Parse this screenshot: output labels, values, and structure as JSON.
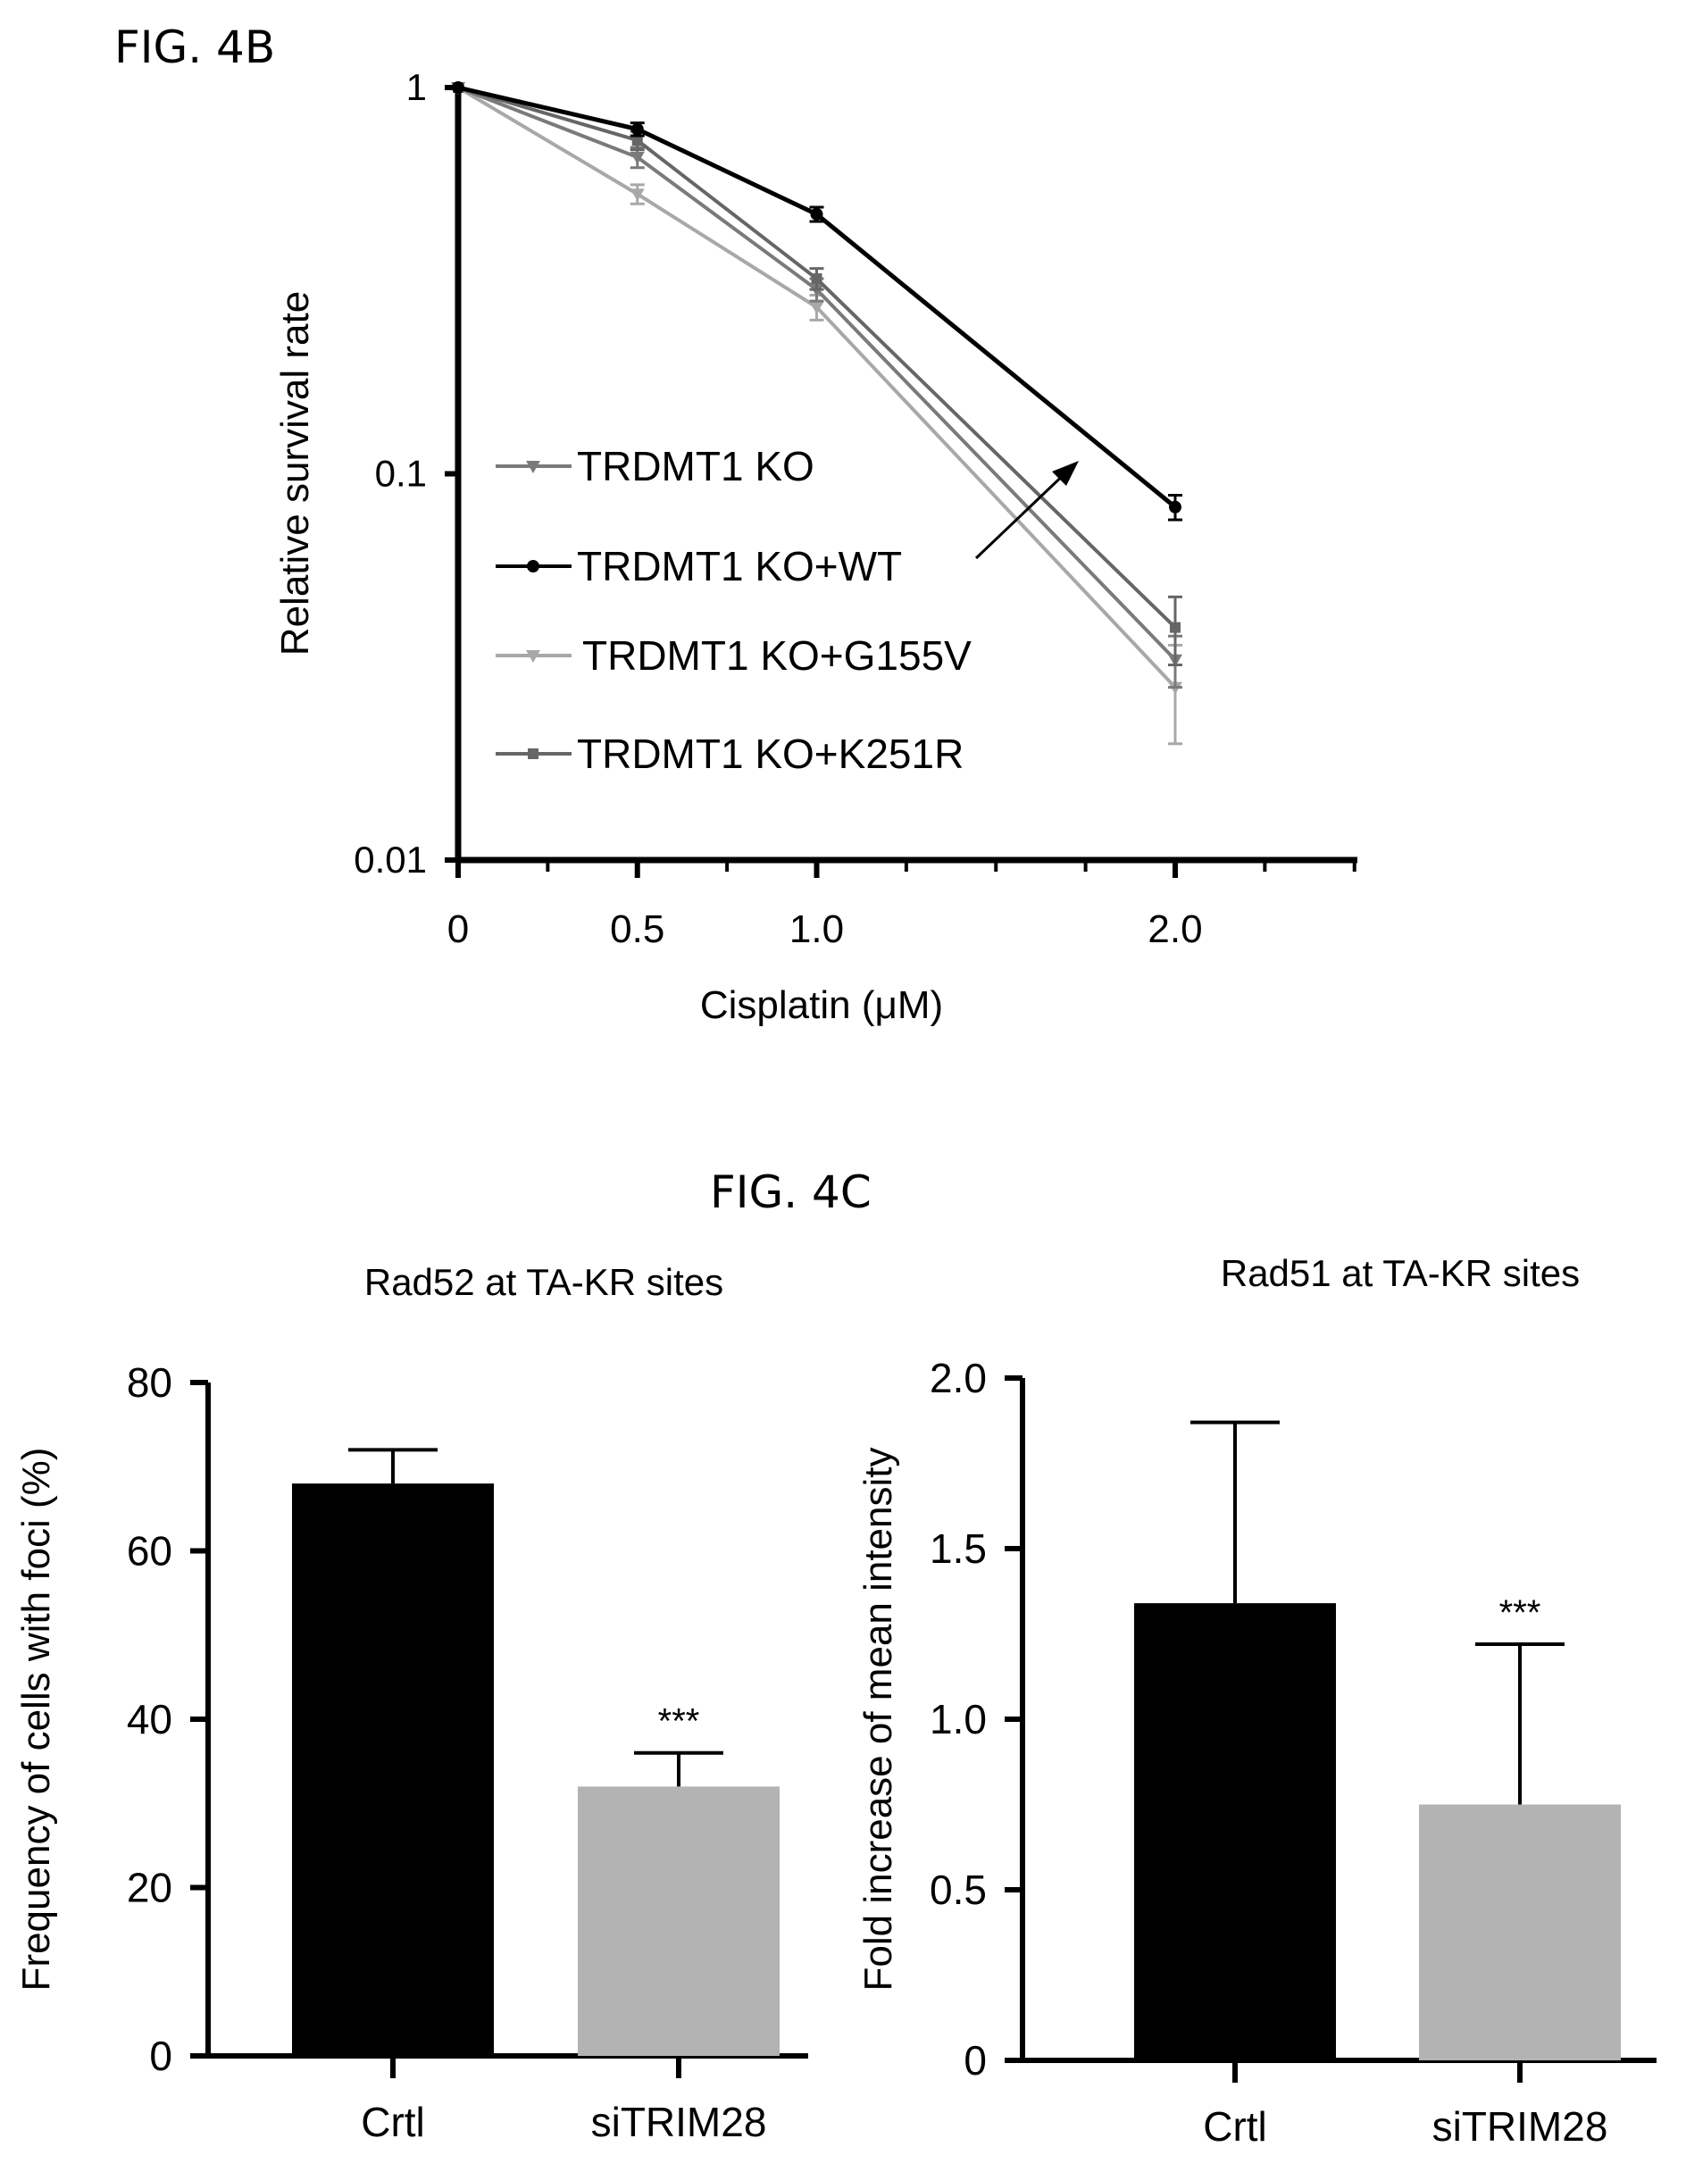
{
  "figure_labels": {
    "fig_4b": "FIG. 4B",
    "fig_4c": "FIG. 4C"
  },
  "colors": {
    "black": "#000000",
    "dark_gray": "#111111",
    "gray": "#7a7a7a",
    "light_gray": "#a8a8a8",
    "bar_gray": "#b3b3b3"
  },
  "chart_data": [
    {
      "id": "fig4b",
      "type": "line",
      "xlabel": "Cisplatin (μM)",
      "ylabel": "Relative survival rate",
      "yscale": "log",
      "ylim": [
        0.01,
        1
      ],
      "xlim": [
        0,
        2.5
      ],
      "x_ticks": [
        0,
        0.5,
        1.0,
        2.0
      ],
      "x_tick_labels": [
        "0",
        "0.5",
        "1.0",
        "2.0"
      ],
      "y_ticks": [
        0.01,
        0.1,
        1
      ],
      "y_tick_labels": [
        "0.01",
        "0.1",
        "1"
      ],
      "x": [
        0,
        0.5,
        1.0,
        2.0
      ],
      "series": [
        {
          "name": "TRDMT1 KO",
          "marker": "triangle-down",
          "color": "#7a7a7a",
          "values": [
            1,
            0.66,
            0.3,
            0.033
          ],
          "errors": [
            0,
            0.04,
            0.02,
            0.005
          ]
        },
        {
          "name": "TRDMT1 KO+WT",
          "marker": "circle",
          "color": "#000000",
          "values": [
            1,
            0.78,
            0.47,
            0.082
          ],
          "errors": [
            0,
            0.03,
            0.02,
            0.006
          ]
        },
        {
          "name": "TRDMT1 KO+G155V",
          "marker": "triangle-down",
          "color": "#a8a8a8",
          "values": [
            1,
            0.53,
            0.27,
            0.028
          ],
          "errors": [
            0,
            0.03,
            0.02,
            0.008
          ]
        },
        {
          "name": "TRDMT1 KO+K251R",
          "marker": "square",
          "color": "#666666",
          "values": [
            1,
            0.73,
            0.32,
            0.04
          ],
          "errors": [
            0,
            0.04,
            0.02,
            0.008
          ]
        }
      ],
      "legend": "inside-lower-left",
      "annotation": "arrow"
    },
    {
      "id": "fig4c-left",
      "type": "bar",
      "title": "Rad52 at TA-KR sites",
      "ylabel": "Frequency of cells with foci (%)",
      "categories": [
        "Crtl",
        "siTRIM28"
      ],
      "values": [
        68,
        32
      ],
      "errors": [
        4,
        4
      ],
      "colors": [
        "#000000",
        "#b3b3b3"
      ],
      "ylim": [
        0,
        80
      ],
      "y_ticks": [
        0,
        20,
        40,
        60,
        80
      ],
      "y_tick_labels": [
        "0",
        "20",
        "40",
        "60",
        "80"
      ],
      "significance": [
        "",
        "***"
      ]
    },
    {
      "id": "fig4c-right",
      "type": "bar",
      "title": "Rad51 at TA-KR sites",
      "ylabel": "Fold increase of mean intensity",
      "categories": [
        "Crtl",
        "siTRIM28"
      ],
      "values": [
        1.34,
        0.75
      ],
      "errors": [
        0.53,
        0.47
      ],
      "colors": [
        "#000000",
        "#b3b3b3"
      ],
      "ylim": [
        0,
        2.0
      ],
      "y_ticks": [
        0,
        0.5,
        1.0,
        1.5,
        2.0
      ],
      "y_tick_labels": [
        "0",
        "0.5",
        "1.0",
        "1.5",
        "2.0"
      ],
      "significance": [
        "",
        "***"
      ]
    }
  ]
}
